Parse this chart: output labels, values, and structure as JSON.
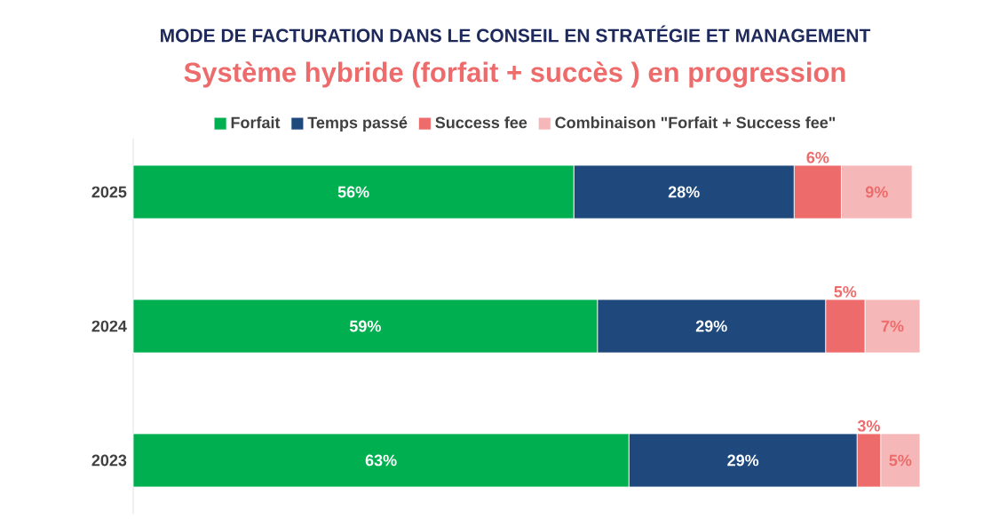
{
  "chart_data": {
    "type": "bar",
    "orientation": "horizontal",
    "stacked": true,
    "title": "MODE DE FACTURATION DANS LE CONSEIL EN STRATÉGIE ET MANAGEMENT",
    "subtitle": "Système hybride (forfait + succès ) en progression",
    "categories": [
      "2025",
      "2024",
      "2023"
    ],
    "legend": "top",
    "series": [
      {
        "name": "Forfait",
        "color": "#00b050",
        "values": [
          56,
          59,
          63
        ],
        "value_labels": [
          "56%",
          "59%",
          "63%"
        ]
      },
      {
        "name": "Temps passé",
        "color": "#1f497d",
        "values": [
          28,
          29,
          29
        ],
        "value_labels": [
          "28%",
          "29%",
          "29%"
        ]
      },
      {
        "name": "Success fee",
        "color": "#ee6b6b",
        "values": [
          6,
          5,
          3
        ],
        "value_labels": [
          "6%",
          "5%",
          "3%"
        ]
      },
      {
        "name": "Combinaison \"Forfait + Success fee\"",
        "color": "#f5b7b7",
        "values": [
          9,
          7,
          5
        ],
        "value_labels": [
          "9%",
          "7%",
          "5%"
        ]
      }
    ]
  }
}
